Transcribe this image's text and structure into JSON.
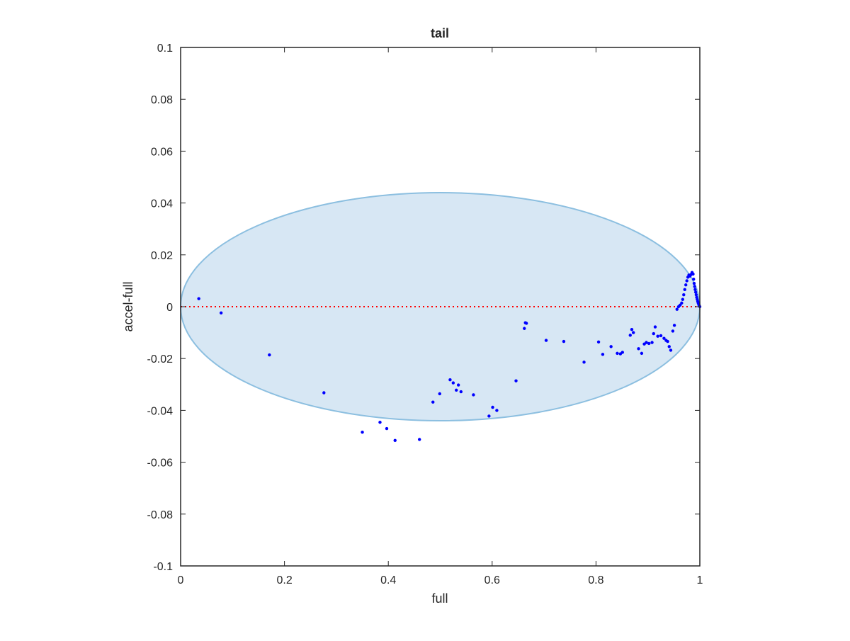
{
  "chart_data": {
    "type": "scatter",
    "title": "tail",
    "xlabel": "full",
    "ylabel": "accel-full",
    "xlim": [
      0,
      1
    ],
    "ylim": [
      -0.1,
      0.1
    ],
    "xticks": [
      0,
      0.2,
      0.4,
      0.6,
      0.8,
      1
    ],
    "xtick_labels": [
      "0",
      "0.2",
      "0.4",
      "0.6",
      "0.8",
      "1"
    ],
    "yticks": [
      -0.1,
      -0.08,
      -0.06,
      -0.04,
      -0.02,
      0,
      0.02,
      0.04,
      0.06,
      0.08,
      0.1
    ],
    "ytick_labels": [
      "-0.1",
      "-0.08",
      "-0.06",
      "-0.04",
      "-0.02",
      "0",
      "0.02",
      "0.04",
      "0.06",
      "0.08",
      "0.1"
    ],
    "grid": false,
    "reference_line": {
      "y": 0,
      "color": "#ff0000",
      "style": "dotted"
    },
    "ellipse": {
      "center": [
        0.5,
        0.0
      ],
      "semi_axes": [
        0.5,
        0.044
      ],
      "fill": "#d7e7f4",
      "stroke": "#8cbfe0"
    },
    "series": [
      {
        "color": "#0000ff",
        "marker": "dot",
        "points": [
          [
            0.035,
            0.0031
          ],
          [
            0.078,
            -0.0024
          ],
          [
            0.171,
            -0.0186
          ],
          [
            0.276,
            -0.0332
          ],
          [
            0.35,
            -0.0484
          ],
          [
            0.384,
            -0.0446
          ],
          [
            0.397,
            -0.047
          ],
          [
            0.413,
            -0.0516
          ],
          [
            0.46,
            -0.0512
          ],
          [
            0.486,
            -0.0368
          ],
          [
            0.499,
            -0.0336
          ],
          [
            0.519,
            -0.0282
          ],
          [
            0.525,
            -0.0294
          ],
          [
            0.531,
            -0.0322
          ],
          [
            0.535,
            -0.0302
          ],
          [
            0.54,
            -0.0328
          ],
          [
            0.564,
            -0.034
          ],
          [
            0.594,
            -0.0422
          ],
          [
            0.601,
            -0.0388
          ],
          [
            0.609,
            -0.04
          ],
          [
            0.646,
            -0.0286
          ],
          [
            0.662,
            -0.0084
          ],
          [
            0.664,
            -0.0062
          ],
          [
            0.666,
            -0.0064
          ],
          [
            0.704,
            -0.013
          ],
          [
            0.738,
            -0.0134
          ],
          [
            0.777,
            -0.0214
          ],
          [
            0.805,
            -0.0136
          ],
          [
            0.813,
            -0.0184
          ],
          [
            0.829,
            -0.0154
          ],
          [
            0.841,
            -0.018
          ],
          [
            0.847,
            -0.0182
          ],
          [
            0.851,
            -0.0176
          ],
          [
            0.866,
            -0.011
          ],
          [
            0.869,
            -0.0088
          ],
          [
            0.872,
            -0.01
          ],
          [
            0.882,
            -0.0162
          ],
          [
            0.888,
            -0.018
          ],
          [
            0.893,
            -0.0144
          ],
          [
            0.897,
            -0.0138
          ],
          [
            0.902,
            -0.0142
          ],
          [
            0.908,
            -0.0138
          ],
          [
            0.911,
            -0.0104
          ],
          [
            0.914,
            -0.0078
          ],
          [
            0.919,
            -0.0114
          ],
          [
            0.925,
            -0.0112
          ],
          [
            0.931,
            -0.0122
          ],
          [
            0.935,
            -0.013
          ],
          [
            0.938,
            -0.0134
          ],
          [
            0.941,
            -0.0154
          ],
          [
            0.944,
            -0.0168
          ],
          [
            0.948,
            -0.0094
          ],
          [
            0.951,
            -0.0072
          ],
          [
            0.956,
            -0.001
          ],
          [
            0.959,
            0.0
          ],
          [
            0.962,
            0.0006
          ],
          [
            0.965,
            0.0014
          ],
          [
            0.967,
            0.0028
          ],
          [
            0.969,
            0.0046
          ],
          [
            0.971,
            0.0066
          ],
          [
            0.973,
            0.0084
          ],
          [
            0.975,
            0.01
          ],
          [
            0.977,
            0.0114
          ],
          [
            0.979,
            0.0122
          ],
          [
            0.981,
            0.0118
          ],
          [
            0.983,
            0.0124
          ],
          [
            0.985,
            0.0132
          ],
          [
            0.987,
            0.0126
          ],
          [
            0.988,
            0.0106
          ],
          [
            0.989,
            0.009
          ],
          [
            0.99,
            0.0078
          ],
          [
            0.991,
            0.0066
          ],
          [
            0.992,
            0.0056
          ],
          [
            0.993,
            0.0046
          ],
          [
            0.994,
            0.0036
          ],
          [
            0.995,
            0.0028
          ],
          [
            0.996,
            0.002
          ],
          [
            0.997,
            0.0014
          ],
          [
            0.998,
            0.0008
          ],
          [
            0.999,
            0.0004
          ],
          [
            1.0,
            0.0
          ]
        ]
      }
    ]
  }
}
